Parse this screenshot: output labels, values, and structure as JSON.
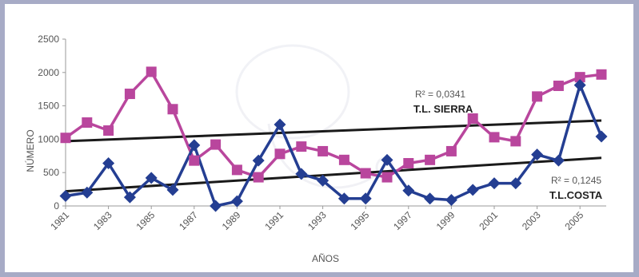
{
  "chart_data": {
    "type": "line",
    "xlabel": "AÑOS",
    "ylabel": "NÚMERO",
    "ylim": [
      0,
      2500
    ],
    "yticks": [
      0,
      500,
      1000,
      1500,
      2000,
      2500
    ],
    "xticks": [
      1981,
      1983,
      1985,
      1987,
      1989,
      1991,
      1993,
      1995,
      1997,
      1999,
      2001,
      2003,
      2005
    ],
    "xlim": [
      1981,
      2006
    ],
    "grid": false,
    "x": [
      1981,
      1982,
      1983,
      1984,
      1985,
      1986,
      1987,
      1988,
      1989,
      1990,
      1991,
      1992,
      1993,
      1994,
      1995,
      1996,
      1997,
      1998,
      1999,
      2000,
      2001,
      2002,
      2003,
      2004,
      2005,
      2006
    ],
    "series": [
      {
        "name": "T.L. SIERRA",
        "color": "#b9469d",
        "marker": "square",
        "values": [
          1020,
          1250,
          1130,
          1680,
          2010,
          1450,
          680,
          920,
          540,
          430,
          780,
          890,
          820,
          690,
          490,
          430,
          640,
          690,
          820,
          1310,
          1030,
          970,
          1640,
          1800,
          1930,
          1970
        ],
        "trend": {
          "start": 970,
          "end": 1280
        },
        "r2_label": "R² = 0,0341"
      },
      {
        "name": "T.L.COSTA",
        "color": "#243e92",
        "marker": "diamond",
        "values": [
          150,
          200,
          640,
          130,
          420,
          240,
          910,
          0,
          70,
          680,
          1220,
          480,
          380,
          110,
          110,
          690,
          230,
          110,
          90,
          240,
          340,
          340,
          770,
          680,
          1810,
          1040
        ],
        "trend": {
          "start": 220,
          "end": 720
        },
        "r2_label": "R² = 0,1245"
      }
    ]
  }
}
